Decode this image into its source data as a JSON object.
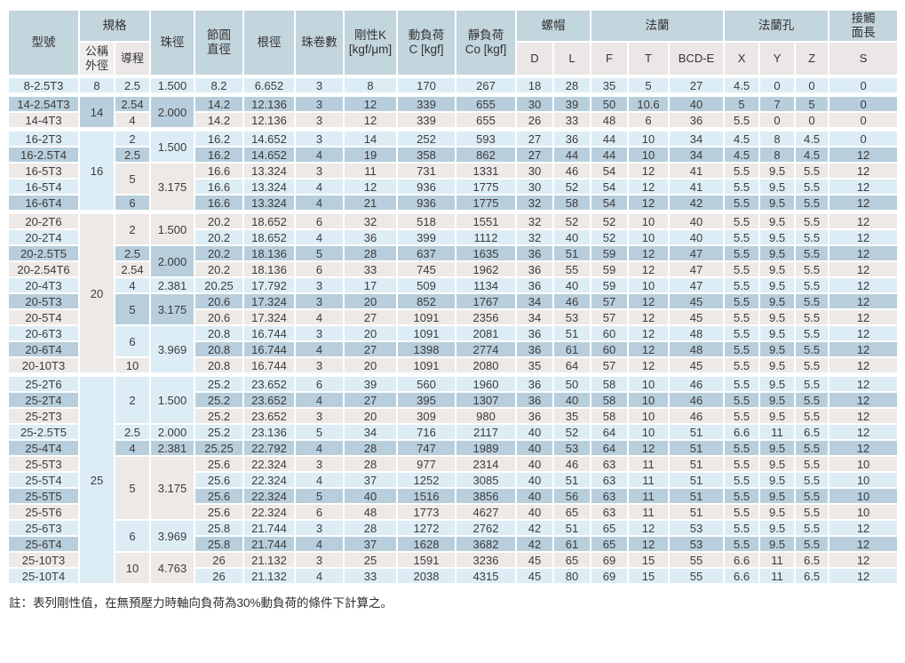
{
  "table": {
    "header": {
      "row1": [
        {
          "label": "型號",
          "rs": 2
        },
        {
          "label": "規格",
          "cs": 2
        },
        {
          "label": "珠徑",
          "rs": 2
        },
        {
          "label": "節圓\n直徑",
          "rs": 2
        },
        {
          "label": "根徑",
          "rs": 2
        },
        {
          "label": "珠卷數",
          "rs": 2
        },
        {
          "label": "剛性K\n[kgf/μm]",
          "rs": 2
        },
        {
          "label": "動負荷\nC [kgf]",
          "rs": 2
        },
        {
          "label": "靜負荷\nCo [kgf]",
          "rs": 2
        },
        {
          "label": "螺帽",
          "cs": 2
        },
        {
          "label": "法蘭",
          "cs": 3
        },
        {
          "label": "法蘭孔",
          "cs": 3
        },
        {
          "label": "接觸\n面長"
        }
      ],
      "row2": [
        "公稱\n外徑",
        "導程",
        "D",
        "L",
        "F",
        "T",
        "BCD-E",
        "X",
        "Y",
        "Z",
        "S"
      ]
    },
    "rows": [
      [
        "8-2.5T3",
        "8",
        "2.5",
        "1.500",
        "8.2",
        "6.652",
        "3",
        "8",
        "170",
        "267",
        "18",
        "28",
        "35",
        "5",
        "27",
        "4.5",
        "0",
        "0",
        "0"
      ],
      [
        "14-2.54T3",
        {
          "v": "14",
          "rs": 2
        },
        "2.54",
        {
          "v": "2.000",
          "rs": 2
        },
        "14.2",
        "12.136",
        "3",
        "12",
        "339",
        "655",
        "30",
        "39",
        "50",
        "10.6",
        "40",
        "5",
        "7",
        "5",
        "0"
      ],
      [
        "14-4T3",
        null,
        "4",
        null,
        "14.2",
        "12.136",
        "3",
        "12",
        "339",
        "655",
        "26",
        "33",
        "48",
        "6",
        "36",
        "5.5",
        "0",
        "0",
        "0"
      ],
      [
        "16-2T3",
        {
          "v": "16",
          "rs": 5
        },
        "2",
        {
          "v": "1.500",
          "rs": 2
        },
        "16.2",
        "14.652",
        "3",
        "14",
        "252",
        "593",
        "27",
        "36",
        "44",
        "10",
        "34",
        "4.5",
        "8",
        "4.5",
        "0"
      ],
      [
        "16-2.5T4",
        null,
        "2.5",
        null,
        "16.2",
        "14.652",
        "4",
        "19",
        "358",
        "862",
        "27",
        "44",
        "44",
        "10",
        "34",
        "4.5",
        "8",
        "4.5",
        "12"
      ],
      [
        "16-5T3",
        null,
        {
          "v": "5",
          "rs": 2
        },
        {
          "v": "3.175",
          "rs": 3
        },
        "16.6",
        "13.324",
        "3",
        "11",
        "731",
        "1331",
        "30",
        "46",
        "54",
        "12",
        "41",
        "5.5",
        "9.5",
        "5.5",
        "12"
      ],
      [
        "16-5T4",
        null,
        null,
        null,
        "16.6",
        "13.324",
        "4",
        "12",
        "936",
        "1775",
        "30",
        "52",
        "54",
        "12",
        "41",
        "5.5",
        "9.5",
        "5.5",
        "12"
      ],
      [
        "16-6T4",
        null,
        "6",
        null,
        "16.6",
        "13.324",
        "4",
        "21",
        "936",
        "1775",
        "32",
        "58",
        "54",
        "12",
        "42",
        "5.5",
        "9.5",
        "5.5",
        "12"
      ],
      [
        "20-2T6",
        {
          "v": "20",
          "rs": 10
        },
        {
          "v": "2",
          "rs": 2
        },
        {
          "v": "1.500",
          "rs": 2
        },
        "20.2",
        "18.652",
        "6",
        "32",
        "518",
        "1551",
        "32",
        "52",
        "52",
        "10",
        "40",
        "5.5",
        "9.5",
        "5.5",
        "12"
      ],
      [
        "20-2T4",
        null,
        null,
        null,
        "20.2",
        "18.652",
        "4",
        "36",
        "399",
        "1112",
        "32",
        "40",
        "52",
        "10",
        "40",
        "5.5",
        "9.5",
        "5.5",
        "12"
      ],
      [
        "20-2.5T5",
        null,
        "2.5",
        {
          "v": "2.000",
          "rs": 2
        },
        "20.2",
        "18.136",
        "5",
        "28",
        "637",
        "1635",
        "36",
        "51",
        "59",
        "12",
        "47",
        "5.5",
        "9.5",
        "5.5",
        "12"
      ],
      [
        "20-2.54T6",
        null,
        "2.54",
        null,
        "20.2",
        "18.136",
        "6",
        "33",
        "745",
        "1962",
        "36",
        "55",
        "59",
        "12",
        "47",
        "5.5",
        "9.5",
        "5.5",
        "12"
      ],
      [
        "20-4T3",
        null,
        "4",
        "2.381",
        "20.25",
        "17.792",
        "3",
        "17",
        "509",
        "1134",
        "36",
        "40",
        "59",
        "10",
        "47",
        "5.5",
        "9.5",
        "5.5",
        "12"
      ],
      [
        "20-5T3",
        null,
        {
          "v": "5",
          "rs": 2
        },
        {
          "v": "3.175",
          "rs": 2
        },
        "20.6",
        "17.324",
        "3",
        "20",
        "852",
        "1767",
        "34",
        "46",
        "57",
        "12",
        "45",
        "5.5",
        "9.5",
        "5.5",
        "12"
      ],
      [
        "20-5T4",
        null,
        null,
        null,
        "20.6",
        "17.324",
        "4",
        "27",
        "1091",
        "2356",
        "34",
        "53",
        "57",
        "12",
        "45",
        "5.5",
        "9.5",
        "5.5",
        "12"
      ],
      [
        "20-6T3",
        null,
        {
          "v": "6",
          "rs": 2
        },
        {
          "v": "3.969",
          "rs": 3
        },
        "20.8",
        "16.744",
        "3",
        "20",
        "1091",
        "2081",
        "36",
        "51",
        "60",
        "12",
        "48",
        "5.5",
        "9.5",
        "5.5",
        "12"
      ],
      [
        "20-6T4",
        null,
        null,
        null,
        "20.8",
        "16.744",
        "4",
        "27",
        "1398",
        "2774",
        "36",
        "61",
        "60",
        "12",
        "48",
        "5.5",
        "9.5",
        "5.5",
        "12"
      ],
      [
        "20-10T3",
        null,
        "10",
        null,
        "20.8",
        "16.744",
        "3",
        "20",
        "1091",
        "2080",
        "35",
        "64",
        "57",
        "12",
        "45",
        "5.5",
        "9.5",
        "5.5",
        "12"
      ],
      [
        "25-2T6",
        {
          "v": "25",
          "rs": 13
        },
        {
          "v": "2",
          "rs": 3
        },
        {
          "v": "1.500",
          "rs": 3
        },
        "25.2",
        "23.652",
        "6",
        "39",
        "560",
        "1960",
        "36",
        "50",
        "58",
        "10",
        "46",
        "5.5",
        "9.5",
        "5.5",
        "12"
      ],
      [
        "25-2T4",
        null,
        null,
        null,
        "25.2",
        "23.652",
        "4",
        "27",
        "395",
        "1307",
        "36",
        "40",
        "58",
        "10",
        "46",
        "5.5",
        "9.5",
        "5.5",
        "12"
      ],
      [
        "25-2T3",
        null,
        null,
        null,
        "25.2",
        "23.652",
        "3",
        "20",
        "309",
        "980",
        "36",
        "35",
        "58",
        "10",
        "46",
        "5.5",
        "9.5",
        "5.5",
        "12"
      ],
      [
        "25-2.5T5",
        null,
        "2.5",
        "2.000",
        "25.2",
        "23.136",
        "5",
        "34",
        "716",
        "2117",
        "40",
        "52",
        "64",
        "10",
        "51",
        "6.6",
        "11",
        "6.5",
        "12"
      ],
      [
        "25-4T4",
        null,
        "4",
        "2.381",
        "25.25",
        "22.792",
        "4",
        "28",
        "747",
        "1989",
        "40",
        "53",
        "64",
        "12",
        "51",
        "5.5",
        "9.5",
        "5.5",
        "12"
      ],
      [
        "25-5T3",
        null,
        {
          "v": "5",
          "rs": 4
        },
        {
          "v": "3.175",
          "rs": 4
        },
        "25.6",
        "22.324",
        "3",
        "28",
        "977",
        "2314",
        "40",
        "46",
        "63",
        "11",
        "51",
        "5.5",
        "9.5",
        "5.5",
        "10"
      ],
      [
        "25-5T4",
        null,
        null,
        null,
        "25.6",
        "22.324",
        "4",
        "37",
        "1252",
        "3085",
        "40",
        "51",
        "63",
        "11",
        "51",
        "5.5",
        "9.5",
        "5.5",
        "10"
      ],
      [
        "25-5T5",
        null,
        null,
        null,
        "25.6",
        "22.324",
        "5",
        "40",
        "1516",
        "3856",
        "40",
        "56",
        "63",
        "11",
        "51",
        "5.5",
        "9.5",
        "5.5",
        "10"
      ],
      [
        "25-5T6",
        null,
        null,
        null,
        "25.6",
        "22.324",
        "6",
        "48",
        "1773",
        "4627",
        "40",
        "65",
        "63",
        "11",
        "51",
        "5.5",
        "9.5",
        "5.5",
        "10"
      ],
      [
        "25-6T3",
        null,
        {
          "v": "6",
          "rs": 2
        },
        {
          "v": "3.969",
          "rs": 2
        },
        "25.8",
        "21.744",
        "3",
        "28",
        "1272",
        "2762",
        "42",
        "51",
        "65",
        "12",
        "53",
        "5.5",
        "9.5",
        "5.5",
        "12"
      ],
      [
        "25-6T4",
        null,
        null,
        null,
        "25.8",
        "21.744",
        "4",
        "37",
        "1628",
        "3682",
        "42",
        "61",
        "65",
        "12",
        "53",
        "5.5",
        "9.5",
        "5.5",
        "12"
      ],
      [
        "25-10T3",
        null,
        {
          "v": "10",
          "rs": 2
        },
        {
          "v": "4.763",
          "rs": 2
        },
        "26",
        "21.132",
        "3",
        "25",
        "1591",
        "3236",
        "45",
        "65",
        "69",
        "15",
        "55",
        "6.6",
        "11",
        "6.5",
        "12"
      ],
      [
        "25-10T4",
        null,
        null,
        null,
        "26",
        "21.132",
        "4",
        "33",
        "2038",
        "4315",
        "45",
        "80",
        "69",
        "15",
        "55",
        "6.6",
        "11",
        "6.5",
        "12"
      ]
    ]
  },
  "note": "註：表列剛性值，在無預壓力時軸向負荷為30%動負荷的條件下計算之。",
  "colors": {
    "header_blue": "#c3d5dd",
    "subheader_gray": "#eae7e6",
    "row_light_blue": "#ddedf6",
    "row_medium_blue": "#b8cedc",
    "row_warm_gray": "#ece9e7",
    "gridline": "#ffffff",
    "text": "#3a3a3a"
  }
}
